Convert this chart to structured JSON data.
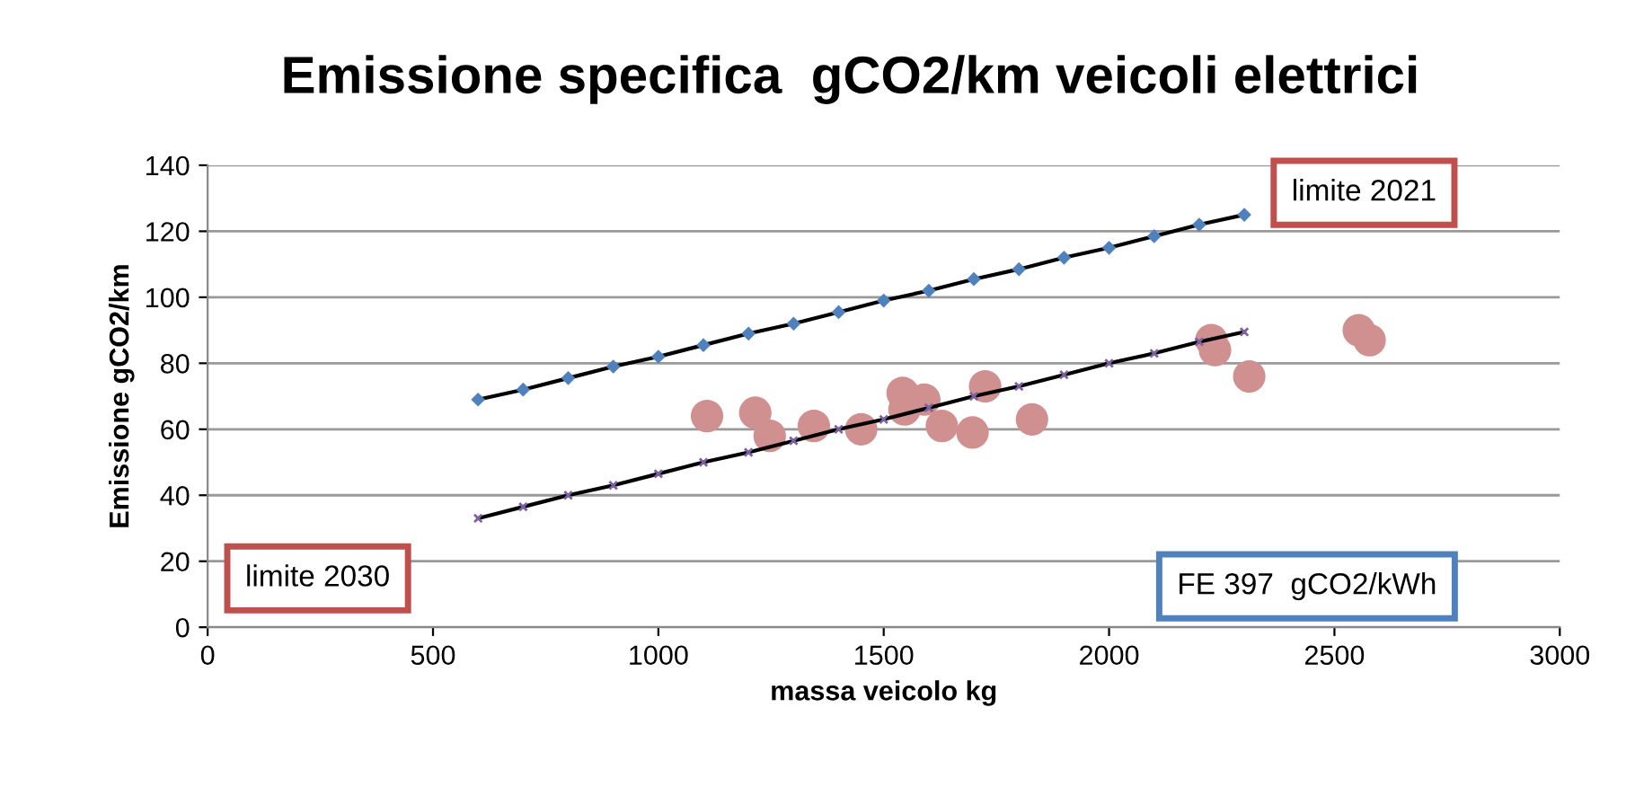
{
  "chart_data": {
    "type": "scatter",
    "title": "Emissione specifica  gCO2/km veicoli elettrici",
    "xlabel": "massa veicolo kg",
    "ylabel": "Emissione gCO2/km",
    "annotations": [
      "limite 2021",
      "limite 2030",
      "FE 397  gCO2/kWh"
    ],
    "series": [
      {
        "type": "line",
        "color": "#000000",
        "marker": "diamond",
        "x": [
          600,
          700,
          800,
          900,
          1000,
          1100,
          1200,
          1300,
          1400,
          1500,
          1600,
          1700,
          1800,
          1900,
          2000,
          2100,
          2200,
          2300
        ],
        "values": [
          69,
          72,
          75.5,
          79,
          82,
          85.5,
          89,
          92,
          95.5,
          99,
          102,
          105.5,
          108.5,
          112,
          115,
          118.5,
          122,
          125
        ]
      },
      {
        "type": "line",
        "color": "#000000",
        "marker": "cross",
        "x": [
          600,
          700,
          800,
          900,
          1000,
          1100,
          1200,
          1300,
          1400,
          1500,
          1600,
          1700,
          1800,
          1900,
          2000,
          2100,
          2200,
          2300
        ],
        "values": [
          33,
          36.5,
          40,
          43,
          46.5,
          50,
          53,
          56.5,
          60,
          63,
          66.5,
          70,
          73,
          76.5,
          80,
          83,
          86.5,
          89.5
        ]
      },
      {
        "color": "#d09090",
        "marker": "circle",
        "x": [
          1108,
          1215,
          1247,
          1345,
          1450,
          1542,
          1546,
          1590,
          1629,
          1697,
          1725,
          1829,
          2227,
          2235,
          2311,
          2554,
          2578
        ],
        "values": [
          64,
          65,
          58,
          61,
          60,
          71,
          66,
          69,
          61,
          59,
          73,
          63,
          87,
          84,
          76,
          90,
          87
        ]
      }
    ],
    "xlim": [
      0,
      3000
    ],
    "xticks": [
      0,
      500,
      1000,
      1500,
      2000,
      2500,
      3000
    ],
    "ylim": [
      0,
      140
    ],
    "yticks": [
      0,
      20,
      40,
      60,
      80,
      100,
      120,
      140
    ],
    "grid": "y",
    "legend": false
  }
}
